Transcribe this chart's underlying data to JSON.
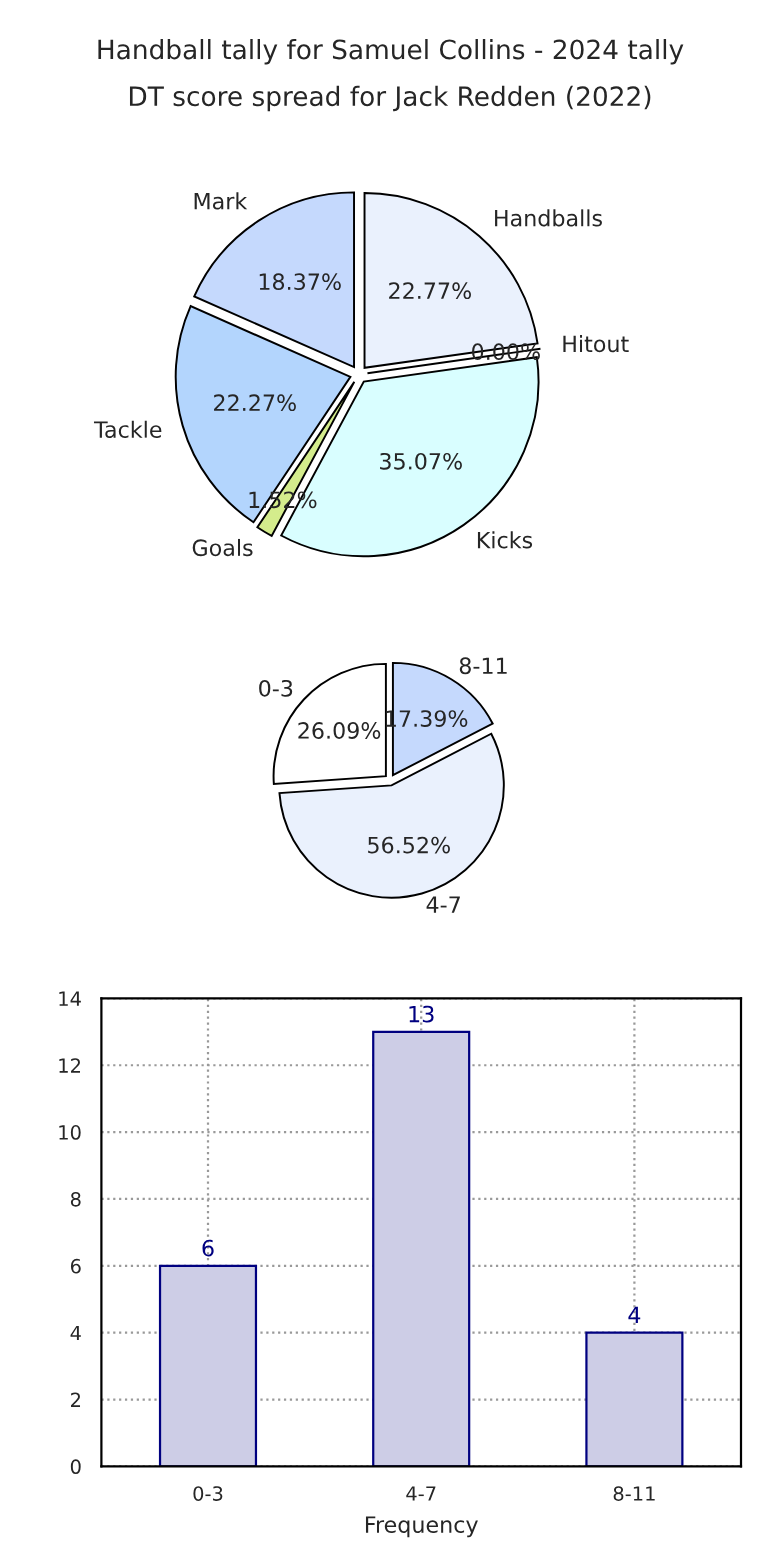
{
  "chart_data": [
    {
      "type": "pie",
      "title": "Handball tally for Samuel Collins - 2024 tally",
      "categories": [
        "Mark",
        "Tackle",
        "Goals",
        "Kicks",
        "Hitout",
        "Handballs"
      ],
      "values": [
        18.37,
        22.27,
        1.52,
        35.07,
        0.0,
        22.77
      ],
      "colors": [
        "#c5d9fd",
        "#b3d5fd",
        "#d4ec8c",
        "#d9feff",
        "#eaf1fd",
        "#eaf1fd"
      ],
      "value_labels": [
        "18.37%",
        "22.27%",
        "1.52%",
        "35.07%",
        "0.00%",
        "22.77%"
      ]
    },
    {
      "type": "pie",
      "title": "DT score spread for Jack Redden (2022)",
      "categories": [
        "0-3",
        "4-7",
        "8-11"
      ],
      "values": [
        26.09,
        56.52,
        17.39
      ],
      "colors": [
        "#ffffff",
        "#eaf1fd",
        "#c5d9fd"
      ],
      "value_labels": [
        "26.09%",
        "56.52%",
        "17.39%"
      ]
    },
    {
      "type": "bar",
      "xlabel": "Frequency",
      "categories": [
        "0-3",
        "4-7",
        "8-11"
      ],
      "values": [
        6,
        13,
        4
      ],
      "color": "#cdcde6",
      "ylim": [
        0,
        14
      ],
      "yticks": [
        0,
        2,
        4,
        6,
        8,
        10,
        12,
        14
      ],
      "grid": true,
      "data_labels": true
    }
  ]
}
